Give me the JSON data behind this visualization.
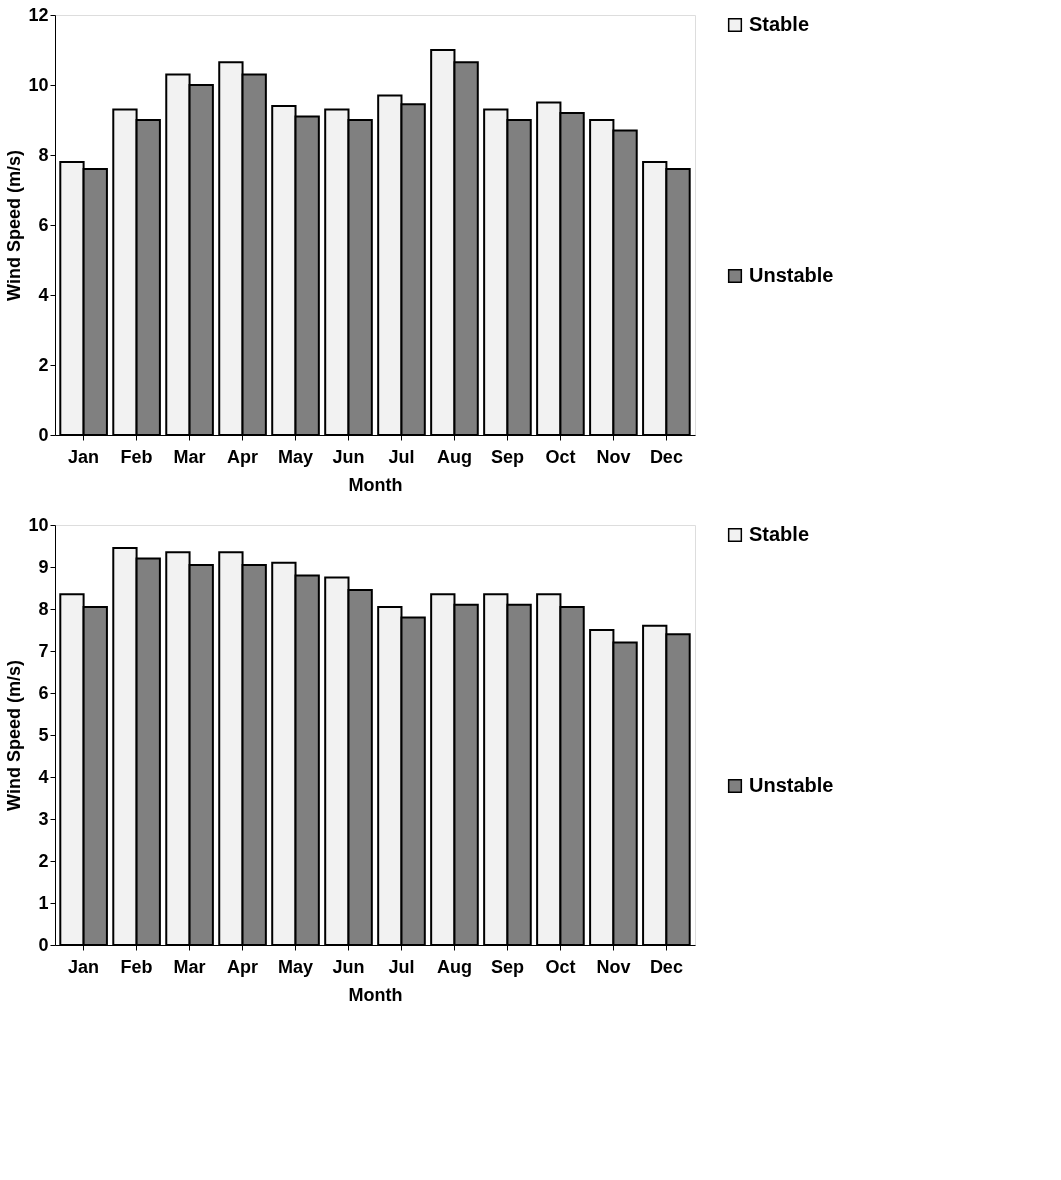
{
  "chart_data": [
    {
      "type": "bar",
      "xlabel": "Month",
      "ylabel": "Wind Speed (m/s)",
      "categories": [
        "Jan",
        "Feb",
        "Mar",
        "Apr",
        "May",
        "Jun",
        "Jul",
        "Aug",
        "Sep",
        "Oct",
        "Nov",
        "Dec"
      ],
      "series": [
        {
          "name": "Stable",
          "color": "#f2f2f2",
          "values": [
            7.8,
            9.3,
            10.3,
            10.65,
            9.4,
            9.3,
            9.7,
            11.0,
            9.3,
            9.5,
            9.0,
            7.8
          ]
        },
        {
          "name": "Unstable",
          "color": "#808080",
          "values": [
            7.6,
            9.0,
            10.0,
            10.3,
            9.1,
            9.0,
            9.45,
            10.65,
            9.0,
            9.2,
            8.7,
            7.6
          ]
        }
      ],
      "ylim": [
        0,
        12
      ],
      "yticks": [
        0,
        2,
        4,
        6,
        8,
        10,
        12
      ],
      "grid": false,
      "legend": "right"
    },
    {
      "type": "bar",
      "xlabel": "Month",
      "ylabel": "Wind Speed (m/s)",
      "categories": [
        "Jan",
        "Feb",
        "Mar",
        "Apr",
        "May",
        "Jun",
        "Jul",
        "Aug",
        "Sep",
        "Oct",
        "Nov",
        "Dec"
      ],
      "series": [
        {
          "name": "Stable",
          "color": "#f2f2f2",
          "values": [
            8.35,
            9.45,
            9.35,
            9.35,
            9.1,
            8.75,
            8.05,
            8.35,
            8.35,
            8.35,
            7.5,
            7.6
          ]
        },
        {
          "name": "Unstable",
          "color": "#808080",
          "values": [
            8.05,
            9.2,
            9.05,
            9.05,
            8.8,
            8.45,
            7.8,
            8.1,
            8.1,
            8.05,
            7.2,
            7.4
          ]
        }
      ],
      "ylim": [
        0,
        10
      ],
      "yticks": [
        0,
        1,
        2,
        3,
        4,
        5,
        6,
        7,
        8,
        9,
        10
      ],
      "grid": false,
      "legend": "right"
    }
  ]
}
